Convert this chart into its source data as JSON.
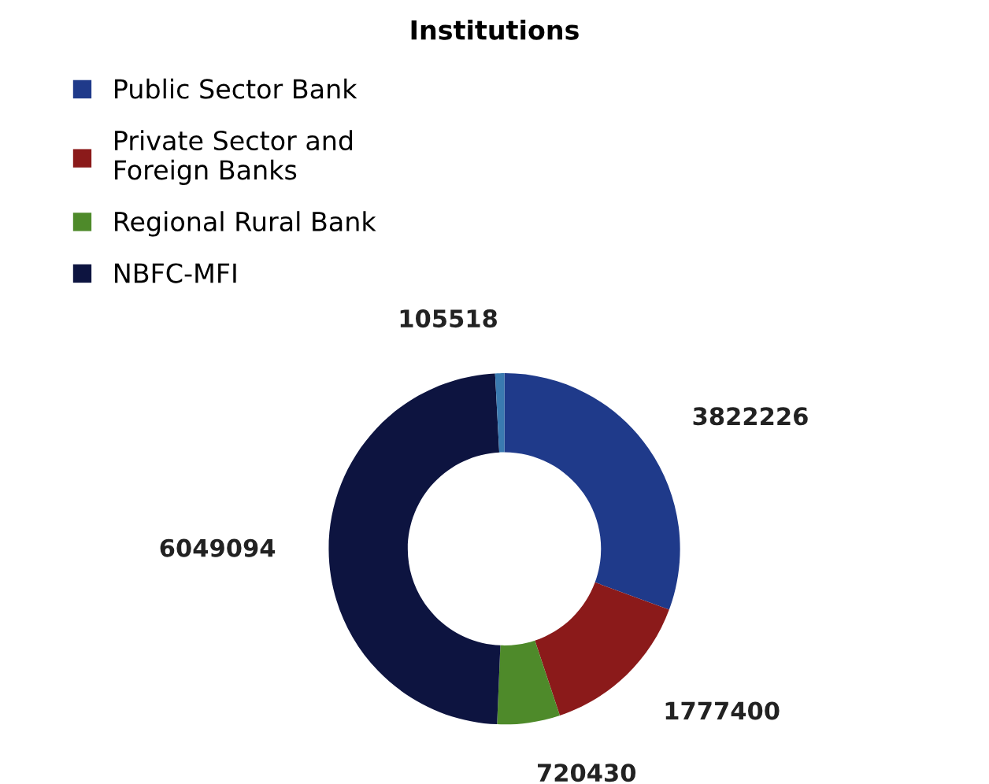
{
  "chart_data": {
    "type": "donut",
    "title": "Institutions",
    "categories": [
      "Public Sector Bank",
      "Private Sector and\nForeign Banks",
      "Regional Rural Bank",
      "NBFC-MFI",
      null
    ],
    "values": [
      3822226,
      1777400,
      720430,
      6049094,
      105518
    ],
    "colors": [
      "#1f3a8a",
      "#8b1a1a",
      "#4e8a2a",
      "#0d1440",
      "#3a7ab0"
    ],
    "data_labels": true,
    "legend": "top left"
  }
}
